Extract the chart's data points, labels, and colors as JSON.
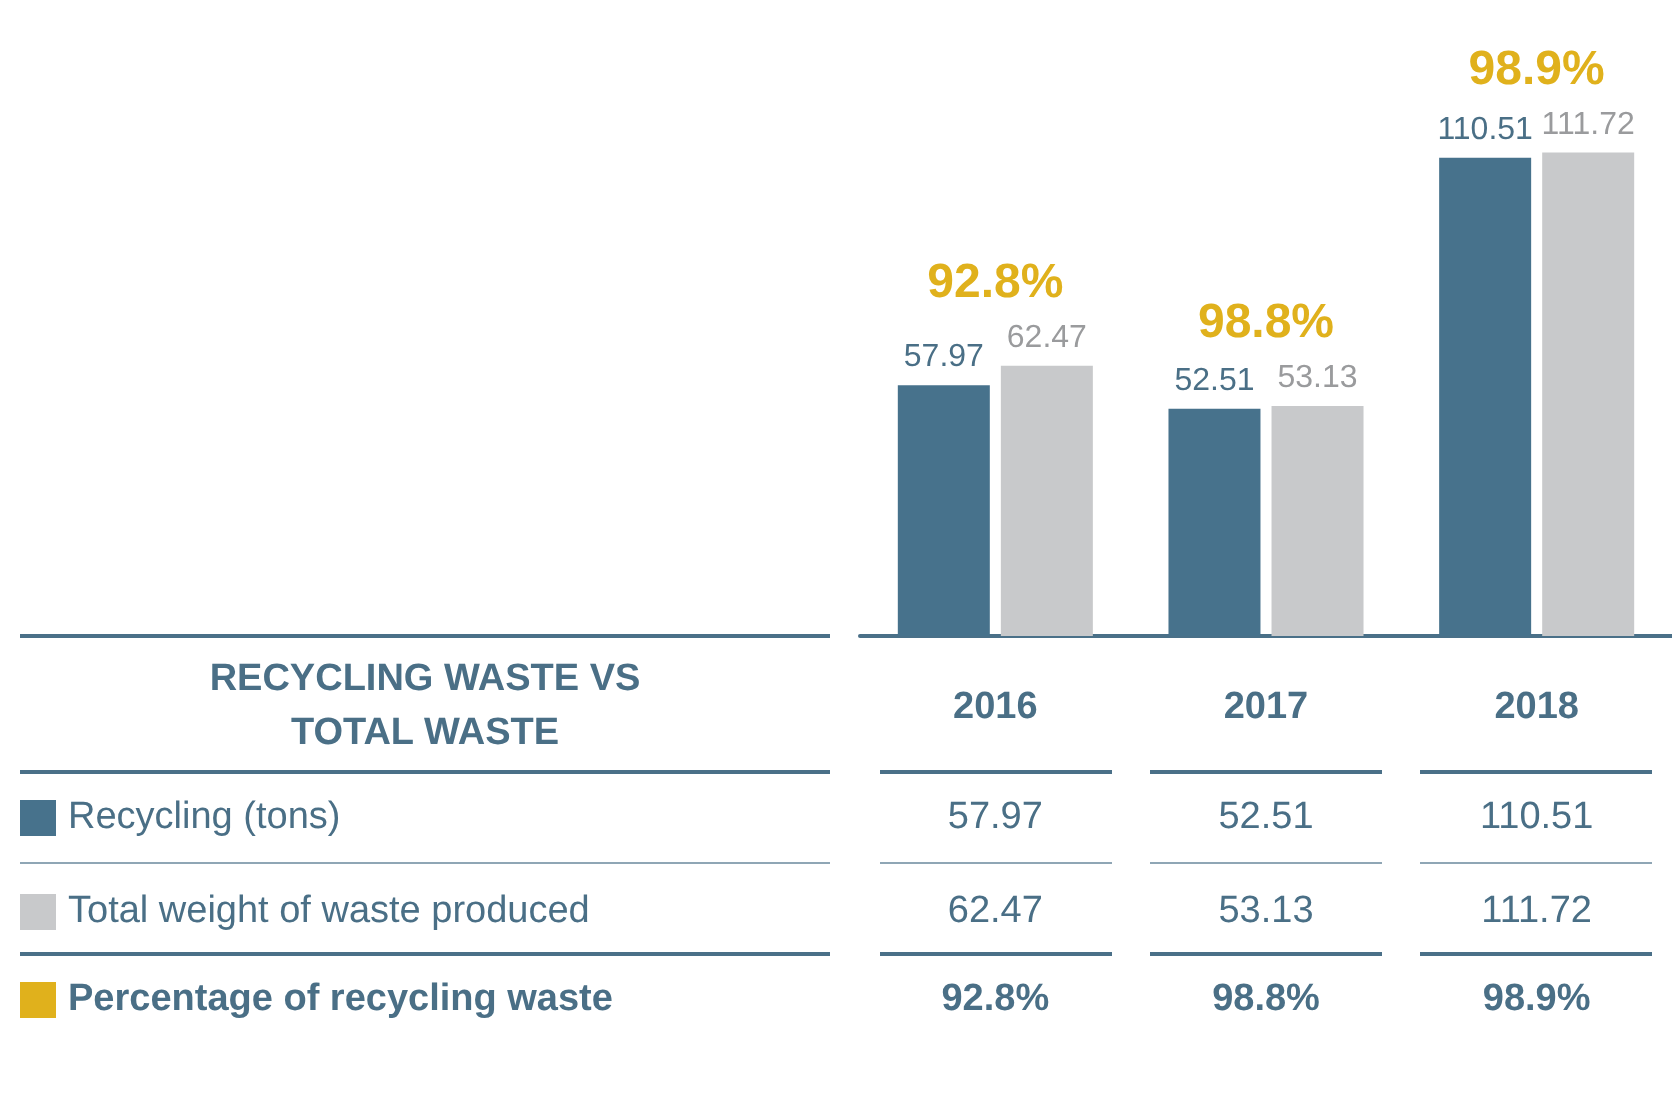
{
  "chart_data": {
    "type": "bar",
    "title": "RECYCLING WASTE VS TOTAL WASTE",
    "categories": [
      "2016",
      "2017",
      "2018"
    ],
    "series": [
      {
        "name": "Recycling (tons)",
        "color": "#47728c",
        "values": [
          57.97,
          52.51,
          110.51
        ],
        "value_labels": [
          "57.97",
          "52.51",
          "110.51"
        ]
      },
      {
        "name": "Total weight of waste produced",
        "color": "#c8c9cb",
        "values": [
          62.47,
          53.13,
          111.72
        ],
        "value_labels": [
          "62.47",
          "53.13",
          "111.72"
        ]
      }
    ],
    "legend": "bottom left",
    "data_labels": true,
    "annotations": [
      {
        "text": "92.8%",
        "x": "2016",
        "y": 62.47
      },
      {
        "text": "98.8%",
        "x": "2017",
        "y": 53.13
      },
      {
        "text": "98.9%",
        "x": "2018",
        "y": 111.72
      },
      "Percentage of recycling waste",
      "57.97",
      "52.51",
      "110.51",
      "62.47",
      "53.13",
      "111.72"
    ]
  }
}
